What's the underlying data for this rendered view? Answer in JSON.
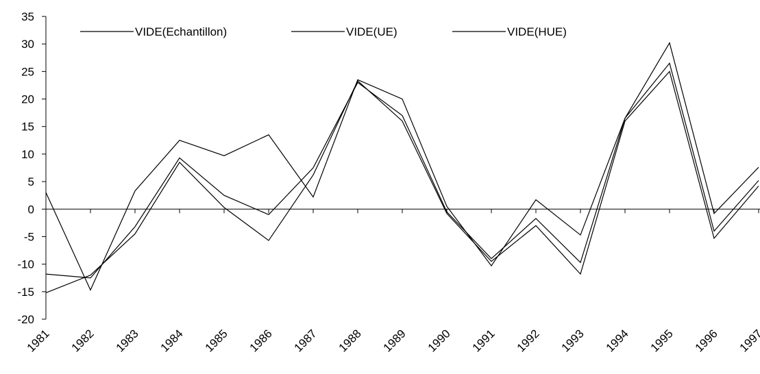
{
  "chart_data": {
    "type": "line",
    "categories": [
      "1981",
      "1982",
      "1983",
      "1984",
      "1985",
      "1986",
      "1987",
      "1988",
      "1989",
      "1990",
      "1991",
      "1992",
      "1993",
      "1994",
      "1995",
      "1996",
      "1997"
    ],
    "series": [
      {
        "name": "VIDE(Echantillon)",
        "color": "#000000",
        "values": [
          3,
          -14.7,
          3.3,
          12.5,
          9.7,
          13.5,
          2.2,
          23.5,
          20,
          0.5,
          -10.3,
          1.7,
          -4.7,
          16.5,
          30.2,
          -0.8,
          7.6
        ]
      },
      {
        "name": "VIDE(UE)",
        "color": "#000000",
        "values": [
          -11.8,
          -12.5,
          -3.2,
          9.3,
          2.5,
          -1,
          7.5,
          23,
          17,
          -0.5,
          -9,
          -1.7,
          -9.7,
          16.5,
          26.5,
          -4,
          5.2
        ]
      },
      {
        "name": "VIDE(HUE)",
        "color": "#000000",
        "values": [
          -15.2,
          -12,
          -4.5,
          8.5,
          0.3,
          -5.7,
          6.2,
          23.3,
          16,
          -0.8,
          -9.5,
          -3,
          -11.8,
          16,
          25,
          -5.3,
          4.2
        ]
      }
    ],
    "ylim": [
      -20,
      35
    ],
    "yticks": [
      -20,
      -15,
      -10,
      -5,
      0,
      5,
      10,
      15,
      20,
      25,
      30,
      35
    ]
  }
}
